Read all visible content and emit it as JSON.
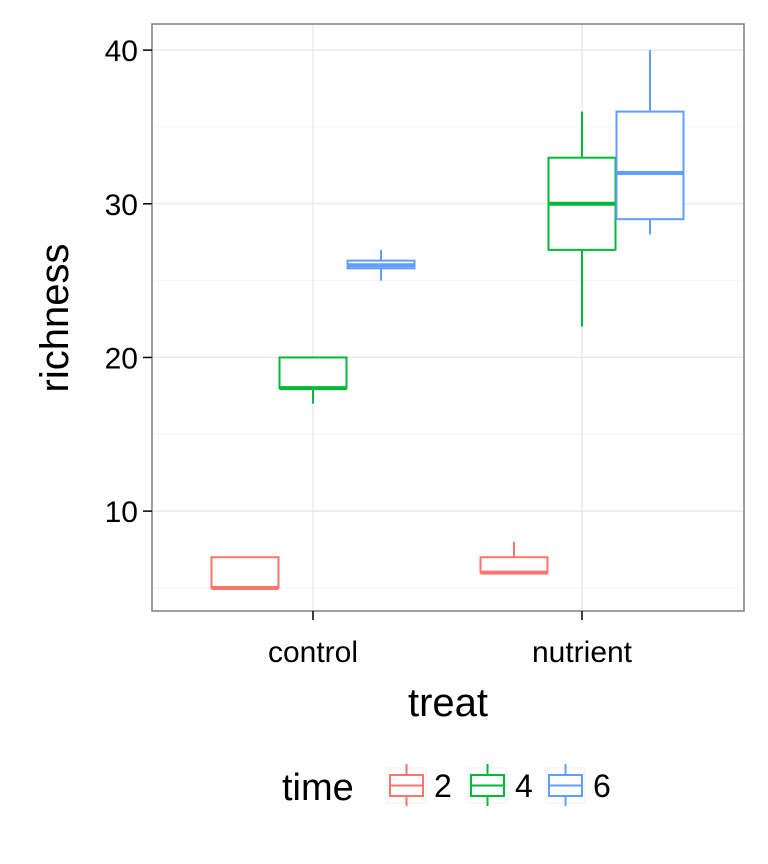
{
  "chart_data": {
    "type": "boxplot",
    "xlabel": "treat",
    "ylabel": "richness",
    "categories": [
      "control",
      "nutrient"
    ],
    "y_ticks": [
      10,
      20,
      30,
      40
    ],
    "ylim": [
      3.5,
      41.7
    ],
    "grid": true,
    "legend": {
      "title": "time",
      "placement": "bottom",
      "entries": [
        "2",
        "4",
        "6"
      ]
    },
    "series": [
      {
        "name": "2",
        "color": "#F8766D",
        "boxes": [
          {
            "category": "control",
            "min": 5,
            "q1": 5,
            "median": 5,
            "q3": 7,
            "max": 7
          },
          {
            "category": "nutrient",
            "min": 6,
            "q1": 6,
            "median": 6,
            "q3": 7,
            "max": 8
          }
        ]
      },
      {
        "name": "4",
        "color": "#00BA38",
        "boxes": [
          {
            "category": "control",
            "min": 17,
            "q1": 18,
            "median": 18,
            "q3": 20,
            "max": 20
          },
          {
            "category": "nutrient",
            "min": 22,
            "q1": 27,
            "median": 30,
            "q3": 33,
            "max": 36
          }
        ]
      },
      {
        "name": "6",
        "color": "#619CFF",
        "boxes": [
          {
            "category": "control",
            "min": 25,
            "q1": 25.8,
            "median": 26,
            "q3": 26.3,
            "max": 27
          },
          {
            "category": "nutrient",
            "min": 28,
            "q1": 29,
            "median": 32,
            "q3": 36,
            "max": 40
          }
        ]
      }
    ]
  }
}
